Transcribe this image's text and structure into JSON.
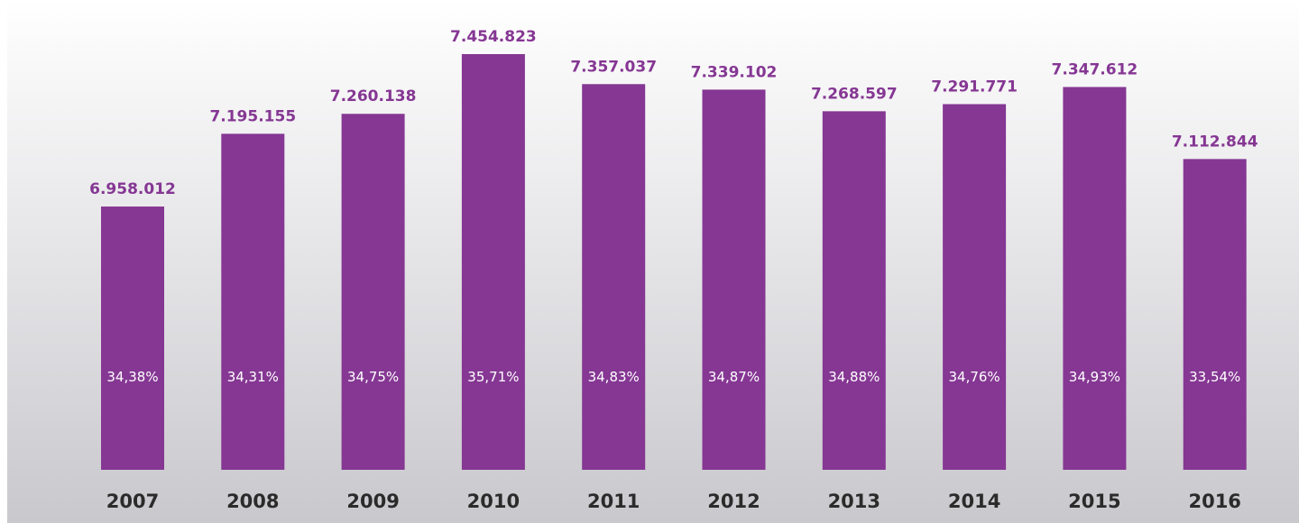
{
  "chart_data": {
    "type": "bar",
    "categories": [
      "2007",
      "2008",
      "2009",
      "2010",
      "2011",
      "2012",
      "2013",
      "2014",
      "2015",
      "2016"
    ],
    "values": [
      6958012,
      7195155,
      7260138,
      7454823,
      7357037,
      7339102,
      7268597,
      7291771,
      7347612,
      7112844
    ],
    "value_labels": [
      "6.958.012",
      "7.195.155",
      "7.260.138",
      "7.454.823",
      "7.357.037",
      "7.339.102",
      "7.268.597",
      "7.291.771",
      "7.347.612",
      "7.112.844"
    ],
    "percent_labels": [
      "34,38%",
      "34,31%",
      "34,75%",
      "35,71%",
      "34,83%",
      "34,87%",
      "34,88%",
      "34,76%",
      "34,93%",
      "33,54%"
    ],
    "title": "",
    "xlabel": "",
    "ylabel": "",
    "ylim": [
      6100000,
      7454823
    ],
    "grid": false,
    "legend": "none",
    "colors": {
      "bar": "#853793",
      "value_text": "#853793",
      "percent_text": "#ffffff",
      "year_text": "#2b2b2b",
      "background_top": "#ffffff",
      "background_bottom": "#c9c8cd"
    }
  }
}
